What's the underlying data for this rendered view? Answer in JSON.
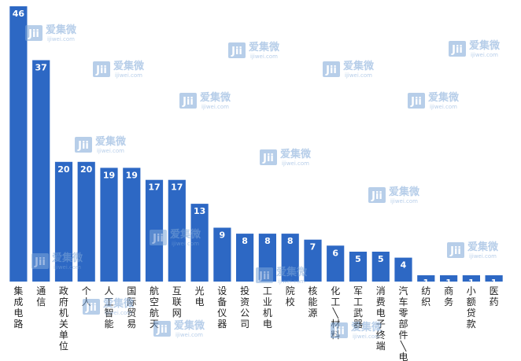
{
  "chart_data": {
    "type": "bar",
    "categories": [
      "集成电路",
      "通信",
      "政府机关单位",
      "个人",
      "人工智能",
      "国际贸易",
      "航空航天",
      "互联网",
      "光电",
      "设备仪器",
      "投资公司",
      "工业机电",
      "院校",
      "核能源",
      "化工材料",
      "军工武器",
      "消费电子终端",
      "汽车零部件电子",
      "纺织",
      "商务",
      "小额贷款",
      "医药"
    ],
    "tick_labels": [
      "集成电路",
      "通信",
      "政府机关单位",
      "个人",
      "人工智能",
      "国际贸易",
      "航空航天",
      "互联网",
      "光电",
      "设备仪器",
      "投资公司",
      "工业机电",
      "院校",
      "核能源",
      "化工\\材料",
      "军工武器",
      "消费电子终端",
      "汽车零部件\\电子",
      "纺织",
      "商务",
      "小额贷款",
      "医药"
    ],
    "values": [
      46,
      37,
      20,
      20,
      19,
      19,
      17,
      17,
      13,
      9,
      8,
      8,
      8,
      7,
      6,
      5,
      5,
      4,
      1,
      1,
      1,
      1
    ],
    "ylim": [
      0,
      46
    ],
    "bar_color": "#2d68c4",
    "label_color": "#ffffff",
    "grid": false,
    "legend": "none"
  },
  "watermark": {
    "brand": "爱集微",
    "url": "ijiwei.com",
    "color": "#7ea7d8"
  }
}
